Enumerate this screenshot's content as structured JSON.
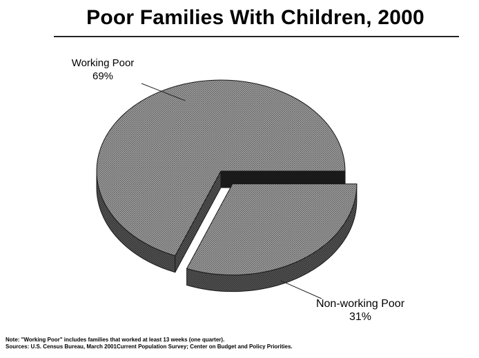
{
  "page": {
    "title": "Poor Families With Children, 2000"
  },
  "chart_data": {
    "type": "pie",
    "title": "Poor Families With Children, 2000",
    "unit": "%",
    "categories": [
      "Working Poor",
      "Non-working Poor"
    ],
    "values": [
      69,
      31
    ],
    "labels": [
      {
        "name": "Working Poor",
        "value_text": "69%"
      },
      {
        "name": "Non-working Poor",
        "value_text": "31%"
      }
    ],
    "exploded_slice": "Non-working Poor",
    "style": "3D",
    "legend": "none"
  },
  "notes": {
    "note": "Note: \"Working Poor\" includes families that worked at least 13 weeks (one quarter).",
    "sources": "Sources:  U.S. Census Bureau, March 2001Current Population Survey; Center on Budget and Policy Priorities."
  },
  "colors": {
    "slice_top": "#8c8c8c",
    "slice_side": "#4a4a4a",
    "outline": "#1a1a1a"
  }
}
